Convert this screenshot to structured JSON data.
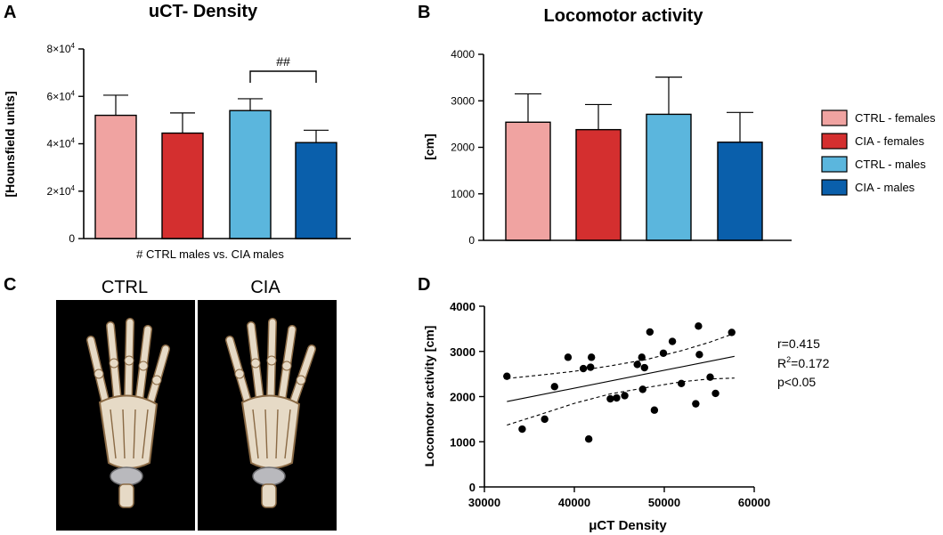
{
  "colors": {
    "ctrl_females": "#f0a3a1",
    "cia_females": "#d42f2f",
    "ctrl_males": "#5bb6dd",
    "cia_males": "#0a5fab",
    "axis": "#000000",
    "photo_bg": "#000000",
    "bone": "#e6dac6"
  },
  "panels": {
    "A": {
      "letter": "A"
    },
    "B": {
      "letter": "B"
    },
    "C": {
      "letter": "C",
      "label_ctrl": "CTRL",
      "label_cia": "CIA"
    },
    "D": {
      "letter": "D"
    }
  },
  "legend": [
    {
      "label": "CTRL - females",
      "color_key": "ctrl_females"
    },
    {
      "label": "CIA - females",
      "color_key": "cia_females"
    },
    {
      "label": "CTRL - males",
      "color_key": "ctrl_males"
    },
    {
      "label": "CIA - males",
      "color_key": "cia_males"
    }
  ],
  "chart_data": [
    {
      "id": "A",
      "type": "bar",
      "title": "uCT- Density",
      "ylabel": "[Hounsfield units]",
      "ylim": [
        0,
        80000
      ],
      "yticks": [
        0,
        20000,
        40000,
        60000,
        80000
      ],
      "ytick_labels": [
        {
          "mant": "0",
          "exp": ""
        },
        {
          "mant": "2×10",
          "exp": "4"
        },
        {
          "mant": "4×10",
          "exp": "4"
        },
        {
          "mant": "6×10",
          "exp": "4"
        },
        {
          "mant": "8×10",
          "exp": "4"
        }
      ],
      "categories": [
        "CTRL - females",
        "CIA - females",
        "CTRL - males",
        "CIA - males"
      ],
      "values": [
        52000,
        44500,
        54000,
        40500
      ],
      "errors": [
        8500,
        8500,
        5000,
        5200
      ],
      "significance": {
        "from": 2,
        "to": 3,
        "label": "##"
      },
      "footnote": "# CTRL males vs. CIA males"
    },
    {
      "id": "B",
      "type": "bar",
      "title": "Locomotor activity",
      "ylabel": "[cm]",
      "ylim": [
        0,
        4000
      ],
      "yticks": [
        0,
        1000,
        2000,
        3000,
        4000
      ],
      "ytick_labels": [
        {
          "mant": "0",
          "exp": ""
        },
        {
          "mant": "1000",
          "exp": ""
        },
        {
          "mant": "2000",
          "exp": ""
        },
        {
          "mant": "3000",
          "exp": ""
        },
        {
          "mant": "4000",
          "exp": ""
        }
      ],
      "categories": [
        "CTRL - females",
        "CIA - females",
        "CTRL - males",
        "CIA - males"
      ],
      "values": [
        2540,
        2380,
        2710,
        2110
      ],
      "errors": [
        610,
        540,
        800,
        640
      ]
    },
    {
      "id": "D",
      "type": "scatter",
      "xlabel": "μCT Density",
      "ylabel": "Locomotor activity [cm]",
      "xlim": [
        30000,
        60000
      ],
      "ylim": [
        0,
        4000
      ],
      "xticks": [
        30000,
        40000,
        50000,
        60000
      ],
      "yticks": [
        0,
        1000,
        2000,
        3000,
        4000
      ],
      "points": [
        [
          32500,
          2450
        ],
        [
          34200,
          1280
        ],
        [
          36700,
          1500
        ],
        [
          37800,
          2220
        ],
        [
          39300,
          2870
        ],
        [
          41000,
          2620
        ],
        [
          41800,
          2650
        ],
        [
          41900,
          2870
        ],
        [
          41600,
          1060
        ],
        [
          44000,
          1950
        ],
        [
          44700,
          1970
        ],
        [
          45600,
          2020
        ],
        [
          47000,
          2710
        ],
        [
          47500,
          2870
        ],
        [
          47800,
          2640
        ],
        [
          47600,
          2160
        ],
        [
          48400,
          3430
        ],
        [
          48900,
          1700
        ],
        [
          49900,
          2960
        ],
        [
          50900,
          3220
        ],
        [
          51900,
          2290
        ],
        [
          53500,
          1840
        ],
        [
          53800,
          3560
        ],
        [
          53900,
          2930
        ],
        [
          55100,
          2430
        ],
        [
          55700,
          2070
        ],
        [
          57500,
          3420
        ]
      ],
      "fit_line": {
        "x": [
          32500,
          57800
        ],
        "y": [
          1890,
          2890
        ]
      },
      "ci_upper": {
        "x": [
          32500,
          36000,
          40000,
          44000,
          48000,
          52000,
          55000,
          57800
        ],
        "y": [
          2400,
          2470,
          2560,
          2680,
          2820,
          3020,
          3200,
          3400
        ]
      },
      "ci_lower": {
        "x": [
          32500,
          36000,
          40000,
          44000,
          48000,
          52000,
          55000,
          57800
        ],
        "y": [
          1370,
          1590,
          1850,
          2060,
          2200,
          2330,
          2390,
          2410
        ]
      },
      "stats": {
        "r": "r=0.415",
        "r2_prefix": "R",
        "r2_sup": "2",
        "r2_value": "=0.172",
        "p": "p<0.05"
      }
    }
  ]
}
